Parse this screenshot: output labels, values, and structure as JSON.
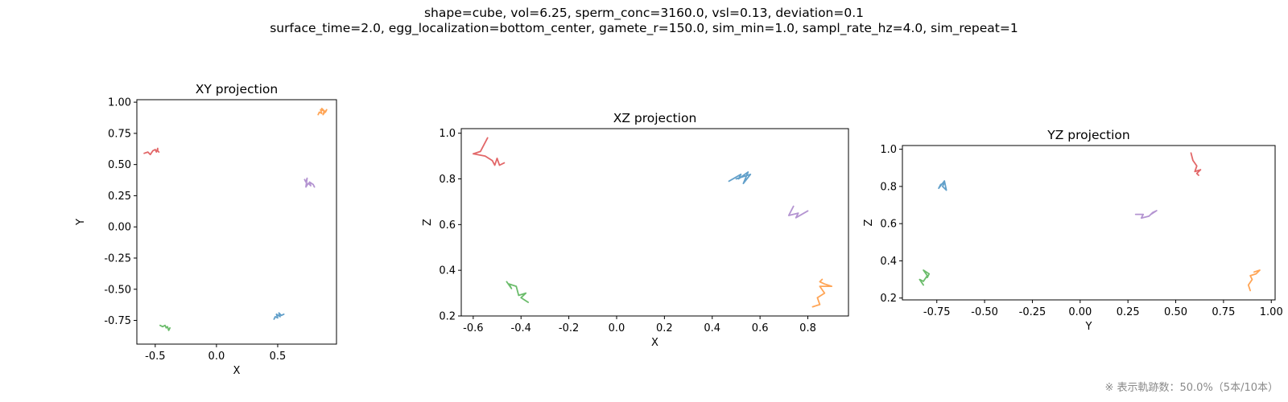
{
  "figure": {
    "title_line1": "shape=cube, vol=6.25, sperm_conc=3160.0, vsl=0.13, deviation=0.1",
    "title_line2": "surface_time=2.0, egg_localization=bottom_center, gamete_r=150.0, sim_min=1.0, sampl_rate_hz=4.0, sim_repeat=1",
    "footnote": "※ 表示軌跡数：50.0%（5本/10本）"
  },
  "colors": {
    "blue": "#1f77b4",
    "orange": "#ff7f0e",
    "green": "#2ca02c",
    "red": "#d62728",
    "purple": "#9467bd"
  },
  "chart_data": [
    {
      "type": "line",
      "title": "XY projection",
      "xlabel": "X",
      "ylabel": "Y",
      "xlim": [
        -0.65,
        0.98
      ],
      "ylim": [
        -0.94,
        1.02
      ],
      "xticks": [
        "-0.5",
        "0.0",
        "0.5"
      ],
      "xtick_values": [
        -0.5,
        0.0,
        0.5
      ],
      "yticks": [
        "-0.75",
        "-0.50",
        "-0.25",
        "0.00",
        "0.25",
        "0.50",
        "0.75",
        "1.00"
      ],
      "ytick_values": [
        -0.75,
        -0.5,
        -0.25,
        0.0,
        0.25,
        0.5,
        0.75,
        1.0
      ],
      "series": [
        {
          "color": "red",
          "x": [
            -0.59,
            -0.56,
            -0.54,
            -0.52,
            -0.5,
            -0.49,
            -0.48,
            -0.48,
            -0.47
          ],
          "y": [
            0.59,
            0.6,
            0.58,
            0.61,
            0.62,
            0.6,
            0.63,
            0.61,
            0.6
          ]
        },
        {
          "color": "orange",
          "x": [
            0.83,
            0.84,
            0.86,
            0.85,
            0.88,
            0.87,
            0.9,
            0.89,
            0.86
          ],
          "y": [
            0.9,
            0.92,
            0.91,
            0.94,
            0.93,
            0.9,
            0.94,
            0.92,
            0.95
          ]
        },
        {
          "color": "purple",
          "x": [
            0.72,
            0.73,
            0.74,
            0.73,
            0.75,
            0.77,
            0.76,
            0.79,
            0.8
          ],
          "y": [
            0.38,
            0.36,
            0.39,
            0.32,
            0.35,
            0.33,
            0.36,
            0.34,
            0.32
          ]
        },
        {
          "color": "blue",
          "x": [
            0.47,
            0.48,
            0.5,
            0.49,
            0.52,
            0.51,
            0.53,
            0.55
          ],
          "y": [
            -0.74,
            -0.72,
            -0.73,
            -0.7,
            -0.72,
            -0.69,
            -0.71,
            -0.7
          ]
        },
        {
          "color": "green",
          "x": [
            -0.46,
            -0.44,
            -0.42,
            -0.41,
            -0.4,
            -0.39,
            -0.38
          ],
          "y": [
            -0.79,
            -0.8,
            -0.79,
            -0.81,
            -0.8,
            -0.83,
            -0.81
          ]
        }
      ]
    },
    {
      "type": "line",
      "title": "XZ projection",
      "xlabel": "X",
      "ylabel": "Z",
      "xlim": [
        -0.65,
        0.97
      ],
      "ylim": [
        0.2,
        1.02
      ],
      "xticks": [
        "-0.6",
        "-0.4",
        "-0.2",
        "0.0",
        "0.2",
        "0.4",
        "0.6",
        "0.8"
      ],
      "xtick_values": [
        -0.6,
        -0.4,
        -0.2,
        0.0,
        0.2,
        0.4,
        0.6,
        0.8
      ],
      "yticks": [
        "0.2",
        "0.4",
        "0.6",
        "0.8",
        "1.0"
      ],
      "ytick_values": [
        0.2,
        0.4,
        0.6,
        0.8,
        1.0
      ],
      "series": [
        {
          "color": "red",
          "x": [
            -0.54,
            -0.57,
            -0.6,
            -0.55,
            -0.52,
            -0.51,
            -0.5,
            -0.49,
            -0.47
          ],
          "y": [
            0.98,
            0.92,
            0.91,
            0.9,
            0.88,
            0.86,
            0.89,
            0.86,
            0.87
          ]
        },
        {
          "color": "blue",
          "x": [
            0.47,
            0.52,
            0.51,
            0.55,
            0.53,
            0.56,
            0.5
          ],
          "y": [
            0.79,
            0.82,
            0.8,
            0.83,
            0.78,
            0.82,
            0.8
          ]
        },
        {
          "color": "purple",
          "x": [
            0.73,
            0.74,
            0.72,
            0.76,
            0.75,
            0.8
          ],
          "y": [
            0.66,
            0.68,
            0.64,
            0.65,
            0.63,
            0.66
          ]
        },
        {
          "color": "orange",
          "x": [
            0.82,
            0.85,
            0.84,
            0.87,
            0.85,
            0.9,
            0.87,
            0.85,
            0.86
          ],
          "y": [
            0.24,
            0.25,
            0.28,
            0.3,
            0.33,
            0.33,
            0.34,
            0.35,
            0.36
          ]
        },
        {
          "color": "green",
          "x": [
            -0.46,
            -0.44,
            -0.45,
            -0.42,
            -0.41,
            -0.38,
            -0.4,
            -0.37
          ],
          "y": [
            0.35,
            0.32,
            0.34,
            0.33,
            0.29,
            0.3,
            0.28,
            0.26
          ]
        }
      ]
    },
    {
      "type": "line",
      "title": "YZ projection",
      "xlabel": "Y",
      "ylabel": "Z",
      "xlim": [
        -0.93,
        1.02
      ],
      "ylim": [
        0.19,
        1.02
      ],
      "xticks": [
        "-0.75",
        "-0.50",
        "-0.25",
        "0.00",
        "0.25",
        "0.50",
        "0.75",
        "1.00"
      ],
      "xtick_values": [
        -0.75,
        -0.5,
        -0.25,
        0.0,
        0.25,
        0.5,
        0.75,
        1.0
      ],
      "yticks": [
        "0.2",
        "0.4",
        "0.6",
        "0.8",
        "1.0"
      ],
      "ytick_values": [
        0.2,
        0.4,
        0.6,
        0.8,
        1.0
      ],
      "series": [
        {
          "color": "blue",
          "x": [
            -0.74,
            -0.73,
            -0.71,
            -0.72,
            -0.7,
            -0.71,
            -0.74
          ],
          "y": [
            0.79,
            0.81,
            0.82,
            0.8,
            0.78,
            0.83,
            0.79
          ]
        },
        {
          "color": "red",
          "x": [
            0.58,
            0.59,
            0.61,
            0.6,
            0.63,
            0.61,
            0.62
          ],
          "y": [
            0.98,
            0.94,
            0.91,
            0.88,
            0.89,
            0.87,
            0.86
          ]
        },
        {
          "color": "purple",
          "x": [
            0.29,
            0.33,
            0.32,
            0.36,
            0.38,
            0.4,
            0.37
          ],
          "y": [
            0.65,
            0.65,
            0.63,
            0.64,
            0.66,
            0.67,
            0.65
          ]
        },
        {
          "color": "green",
          "x": [
            -0.82,
            -0.84,
            -0.82,
            -0.8,
            -0.82,
            -0.79,
            -0.8
          ],
          "y": [
            0.27,
            0.3,
            0.29,
            0.32,
            0.35,
            0.33,
            0.31
          ]
        },
        {
          "color": "orange",
          "x": [
            0.89,
            0.88,
            0.9,
            0.89,
            0.92,
            0.94,
            0.91
          ],
          "y": [
            0.24,
            0.27,
            0.3,
            0.32,
            0.33,
            0.35,
            0.34
          ]
        }
      ]
    }
  ]
}
